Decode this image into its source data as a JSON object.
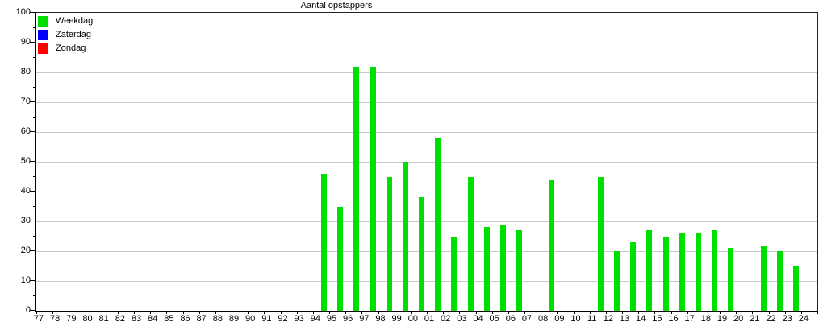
{
  "chart_data": {
    "type": "bar",
    "title": "Aantal opstappers",
    "xlabel": "",
    "ylabel": "",
    "ylim": [
      0,
      100
    ],
    "ytick_major_step": 10,
    "ytick_minor_step": 5,
    "grid": "horizontal",
    "legend_position": "top-left-inside",
    "categories": [
      "77",
      "78",
      "79",
      "80",
      "81",
      "82",
      "83",
      "84",
      "85",
      "86",
      "87",
      "88",
      "89",
      "90",
      "91",
      "92",
      "93",
      "94",
      "95",
      "96",
      "97",
      "98",
      "99",
      "00",
      "01",
      "02",
      "03",
      "04",
      "05",
      "06",
      "07",
      "08",
      "09",
      "10",
      "11",
      "12",
      "13",
      "14",
      "15",
      "16",
      "17",
      "18",
      "19",
      "20",
      "21",
      "22",
      "23",
      "24"
    ],
    "series": [
      {
        "name": "Weekdag",
        "color": "#00DE00",
        "values": [
          null,
          null,
          null,
          null,
          null,
          null,
          null,
          null,
          null,
          null,
          null,
          null,
          null,
          null,
          null,
          null,
          null,
          46,
          35,
          82,
          82,
          45,
          50,
          38,
          58,
          25,
          45,
          28,
          29,
          27,
          null,
          44,
          null,
          null,
          45,
          20,
          23,
          27,
          25,
          26,
          26,
          27,
          21,
          null,
          22,
          20,
          15,
          null
        ]
      },
      {
        "name": "Zaterdag",
        "color": "#0000FF",
        "values": [
          null,
          null,
          null,
          null,
          null,
          null,
          null,
          null,
          null,
          null,
          null,
          null,
          null,
          null,
          null,
          null,
          null,
          null,
          null,
          null,
          null,
          null,
          null,
          null,
          null,
          null,
          null,
          null,
          null,
          null,
          null,
          null,
          null,
          null,
          null,
          null,
          null,
          null,
          null,
          null,
          null,
          null,
          null,
          null,
          null,
          null,
          null,
          null
        ]
      },
      {
        "name": "Zondag",
        "color": "#FF0000",
        "values": [
          null,
          null,
          null,
          null,
          null,
          null,
          null,
          null,
          null,
          null,
          null,
          null,
          null,
          null,
          null,
          null,
          null,
          null,
          null,
          null,
          null,
          null,
          null,
          null,
          null,
          null,
          null,
          null,
          null,
          null,
          null,
          null,
          null,
          null,
          null,
          null,
          null,
          null,
          null,
          null,
          null,
          null,
          null,
          null,
          null,
          null,
          null,
          null
        ]
      }
    ],
    "legend": [
      {
        "label": "Weekdag",
        "color": "#00DE00"
      },
      {
        "label": "Zaterdag",
        "color": "#0000FF"
      },
      {
        "label": "Zondag",
        "color": "#FF0000"
      }
    ],
    "colors": {
      "gridline": "#c8c8c8",
      "axis": "#000000",
      "background": "#ffffff"
    }
  }
}
